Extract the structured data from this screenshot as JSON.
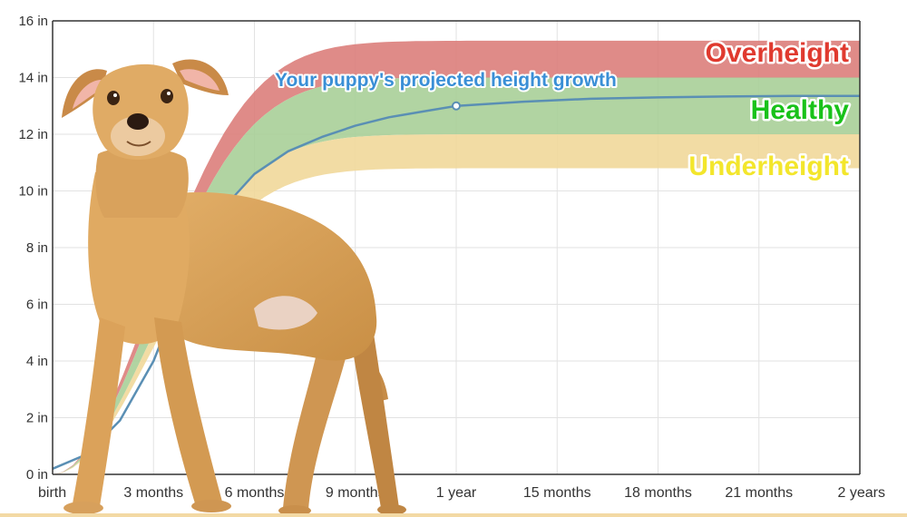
{
  "chart_data": {
    "type": "area",
    "title": "",
    "xlabel": "",
    "ylabel": "",
    "x_categories": [
      "birth",
      "3 months",
      "6 months",
      "9 months",
      "1 year",
      "15 months",
      "18 months",
      "21 months",
      "2 years"
    ],
    "x_months": [
      0,
      3,
      6,
      9,
      12,
      15,
      18,
      21,
      24
    ],
    "y_ticks": [
      "0 in",
      "2 in",
      "4 in",
      "6 in",
      "8 in",
      "10 in",
      "12 in",
      "14 in",
      "16 in"
    ],
    "ylim": [
      0,
      16
    ],
    "grid": true,
    "bands": [
      {
        "name": "Overheight",
        "color": "#e03a2f",
        "fill": "#dc7e7b",
        "lower_final": 14.0,
        "upper_final": 15.3
      },
      {
        "name": "Healthy",
        "color": "#19c21a",
        "fill": "#a9cf98",
        "lower_final": 12.0,
        "upper_final": 14.0
      },
      {
        "name": "Underheight",
        "color": "#f3e62c",
        "fill": "#f1d89a",
        "lower_final": 10.8,
        "upper_final": 12.0
      }
    ],
    "series": [
      {
        "name": "Your puppy's projected height growth",
        "color": "#5a8fb4",
        "x": [
          0,
          1,
          2,
          3,
          4,
          5,
          6,
          7,
          8,
          9,
          10,
          11,
          12,
          14,
          16,
          18,
          20,
          22,
          24
        ],
        "values": [
          0.2,
          0.7,
          1.9,
          4.0,
          7.0,
          9.3,
          10.6,
          11.4,
          11.9,
          12.3,
          12.6,
          12.8,
          13.0,
          13.15,
          13.25,
          13.3,
          13.33,
          13.35,
          13.35
        ]
      }
    ],
    "marker": {
      "x": 12,
      "y": 13.0
    }
  },
  "image": {
    "subject": "dog-photo"
  }
}
